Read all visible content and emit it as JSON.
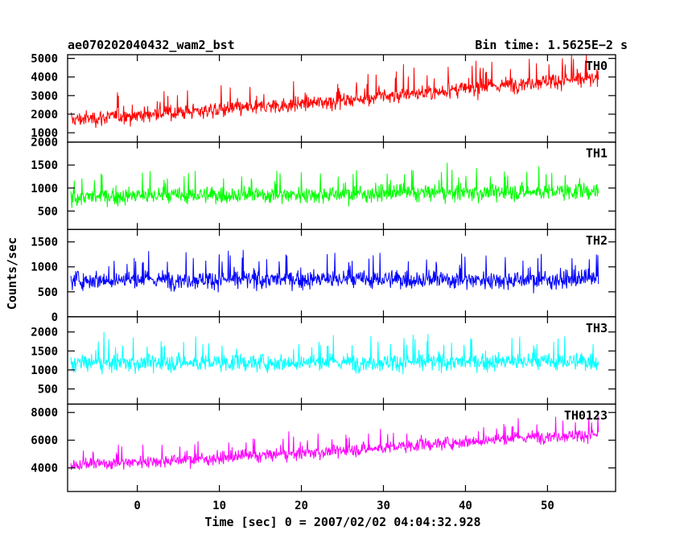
{
  "chart_data": {
    "type": "line",
    "title": "ae070202040432_wam2_bst",
    "subtitle": "Bin time: 1.5625E−2 s",
    "xlabel": "Time [sec] 0 = 2007/02/02 04:04:32.928",
    "ylabel": "Counts/sec",
    "xlim": [
      -8.5,
      58.3
    ],
    "x_ticks": [
      0,
      10,
      20,
      30,
      40,
      50
    ],
    "x_tick_labels": [
      "0",
      "10",
      "20",
      "30",
      "40",
      "50"
    ],
    "data_x_range": [
      -8.1,
      56.2
    ],
    "grid": false,
    "panels": [
      {
        "name": "TH0",
        "color": "#ff0000",
        "ylim": [
          500,
          5200
        ],
        "y_ticks": [
          1000,
          2000,
          3000,
          4000,
          5000
        ],
        "y_tick_labels": [
          "1000",
          "2000",
          "3000",
          "4000",
          "5000"
        ],
        "trend": [
          [
            -8.1,
            1700
          ],
          [
            0,
            1950
          ],
          [
            10,
            2250
          ],
          [
            20,
            2550
          ],
          [
            30,
            2950
          ],
          [
            40,
            3350
          ],
          [
            50,
            3800
          ],
          [
            56.2,
            3900
          ]
        ],
        "scatter": 650
      },
      {
        "name": "TH1",
        "color": "#00ff00",
        "ylim": [
          100,
          2000
        ],
        "y_ticks": [
          500,
          1000,
          1500,
          2000
        ],
        "y_tick_labels": [
          "500",
          "1000",
          "1500",
          "2000"
        ],
        "trend": [
          [
            -8.1,
            800
          ],
          [
            0,
            830
          ],
          [
            20,
            860
          ],
          [
            40,
            900
          ],
          [
            56.2,
            930
          ]
        ],
        "scatter": 280
      },
      {
        "name": "TH2",
        "color": "#0000ff",
        "ylim": [
          0,
          1750
        ],
        "y_ticks": [
          0,
          500,
          1000,
          1500
        ],
        "y_tick_labels": [
          "0",
          "500",
          "1000",
          "1500"
        ],
        "trend": [
          [
            -8.1,
            740
          ],
          [
            20,
            750
          ],
          [
            56.2,
            740
          ]
        ],
        "scatter": 280
      },
      {
        "name": "TH3",
        "color": "#00ffff",
        "ylim": [
          100,
          2400
        ],
        "y_ticks": [
          500,
          1000,
          1500,
          2000
        ],
        "y_tick_labels": [
          "500",
          "1000",
          "1500",
          "2000"
        ],
        "trend": [
          [
            -8.1,
            1180
          ],
          [
            20,
            1200
          ],
          [
            56.2,
            1220
          ]
        ],
        "scatter": 350
      },
      {
        "name": "TH0123",
        "color": "#ff00ff",
        "ylim": [
          2300,
          8600
        ],
        "y_ticks": [
          4000,
          6000,
          8000
        ],
        "y_tick_labels": [
          "4000",
          "6000",
          "8000"
        ],
        "trend": [
          [
            -8.1,
            4200
          ],
          [
            0,
            4450
          ],
          [
            10,
            4700
          ],
          [
            20,
            5050
          ],
          [
            30,
            5450
          ],
          [
            40,
            5900
          ],
          [
            50,
            6300
          ],
          [
            56.2,
            6400
          ]
        ],
        "scatter": 700
      }
    ]
  }
}
